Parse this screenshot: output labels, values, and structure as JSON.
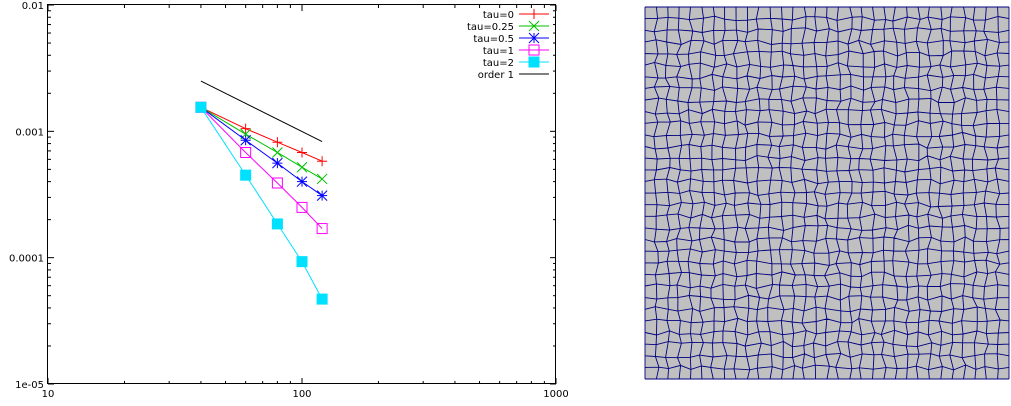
{
  "chart_data": [
    {
      "type": "line",
      "xscale": "log",
      "yscale": "log",
      "xlim": [
        10,
        1000
      ],
      "ylim": [
        1e-05,
        0.01
      ],
      "xticks": [
        {
          "value": 10,
          "label": "10"
        },
        {
          "value": 100,
          "label": "100"
        },
        {
          "value": 1000,
          "label": "1000"
        }
      ],
      "yticks": [
        {
          "value": 1e-05,
          "label": "1e-05"
        },
        {
          "value": 0.0001,
          "label": "0.0001"
        },
        {
          "value": 0.001,
          "label": "0.001"
        },
        {
          "value": 0.01,
          "label": "0.01"
        }
      ],
      "legend_position": "top-right",
      "grid": false,
      "series": [
        {
          "name": "tau=0",
          "color": "#ff0000",
          "marker": "plus",
          "x": [
            40,
            60,
            80,
            100,
            120
          ],
          "y": [
            0.00155,
            0.00105,
            0.00082,
            0.00068,
            0.00058
          ]
        },
        {
          "name": "tau=0.25",
          "color": "#00c000",
          "marker": "cross",
          "x": [
            40,
            60,
            80,
            100,
            120
          ],
          "y": [
            0.00155,
            0.00095,
            0.00068,
            0.00052,
            0.00042
          ]
        },
        {
          "name": "tau=0.5",
          "color": "#0000ff",
          "marker": "asterisk",
          "x": [
            40,
            60,
            80,
            100,
            120
          ],
          "y": [
            0.00155,
            0.00085,
            0.00056,
            0.0004,
            0.00031
          ]
        },
        {
          "name": "tau=1",
          "color": "#ff00ff",
          "marker": "open-square",
          "x": [
            40,
            60,
            80,
            100,
            120
          ],
          "y": [
            0.00155,
            0.00068,
            0.00039,
            0.00025,
            0.00017
          ]
        },
        {
          "name": "tau=2",
          "color": "#00e0ff",
          "marker": "filled-square",
          "x": [
            40,
            60,
            80,
            100,
            120
          ],
          "y": [
            0.00155,
            0.00045,
            0.000185,
            9.3e-05,
            4.7e-05
          ]
        },
        {
          "name": "order 1",
          "color": "#000000",
          "marker": "none",
          "x": [
            40,
            120
          ],
          "y": [
            0.0025,
            0.00083
          ]
        }
      ]
    },
    {
      "type": "mesh",
      "description_free": true,
      "fill_color": "#c0c0c0",
      "line_color": "#000080",
      "grid_cells": 32
    }
  ]
}
